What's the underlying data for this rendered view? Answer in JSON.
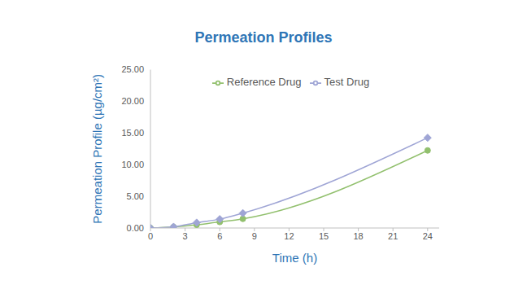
{
  "chart_data": {
    "type": "line",
    "title": "Permeation Profiles",
    "x_label": "Time (h)",
    "y_label": "Permeation Profile (µg/cm²)",
    "x": [
      0,
      2,
      4,
      6,
      8,
      24
    ],
    "series": [
      {
        "name": "Reference Drug",
        "color": "#92c06e",
        "marker": "circle",
        "line_style": "solid",
        "values": [
          0,
          0.15,
          0.5,
          0.95,
          1.45,
          12.25
        ]
      },
      {
        "name": "Test Drug",
        "color": "#9fa5d5",
        "marker": "diamond",
        "line_style": "solid",
        "values": [
          0,
          0.2,
          0.85,
          1.4,
          2.35,
          14.25
        ]
      }
    ],
    "xlim": [
      0,
      25
    ],
    "xticks": [
      0,
      3,
      6,
      9,
      12,
      15,
      18,
      21,
      24
    ],
    "ylim": [
      0,
      25
    ],
    "yticks": [
      {
        "value": 0,
        "label": "0.00"
      },
      {
        "value": 5,
        "label": "5.00"
      },
      {
        "value": 10,
        "label": "10.00"
      },
      {
        "value": 15,
        "label": "15.00"
      },
      {
        "value": 20,
        "label": "20.00"
      },
      {
        "value": 25,
        "label": "25.00"
      }
    ],
    "grid": false,
    "legend": "top"
  }
}
